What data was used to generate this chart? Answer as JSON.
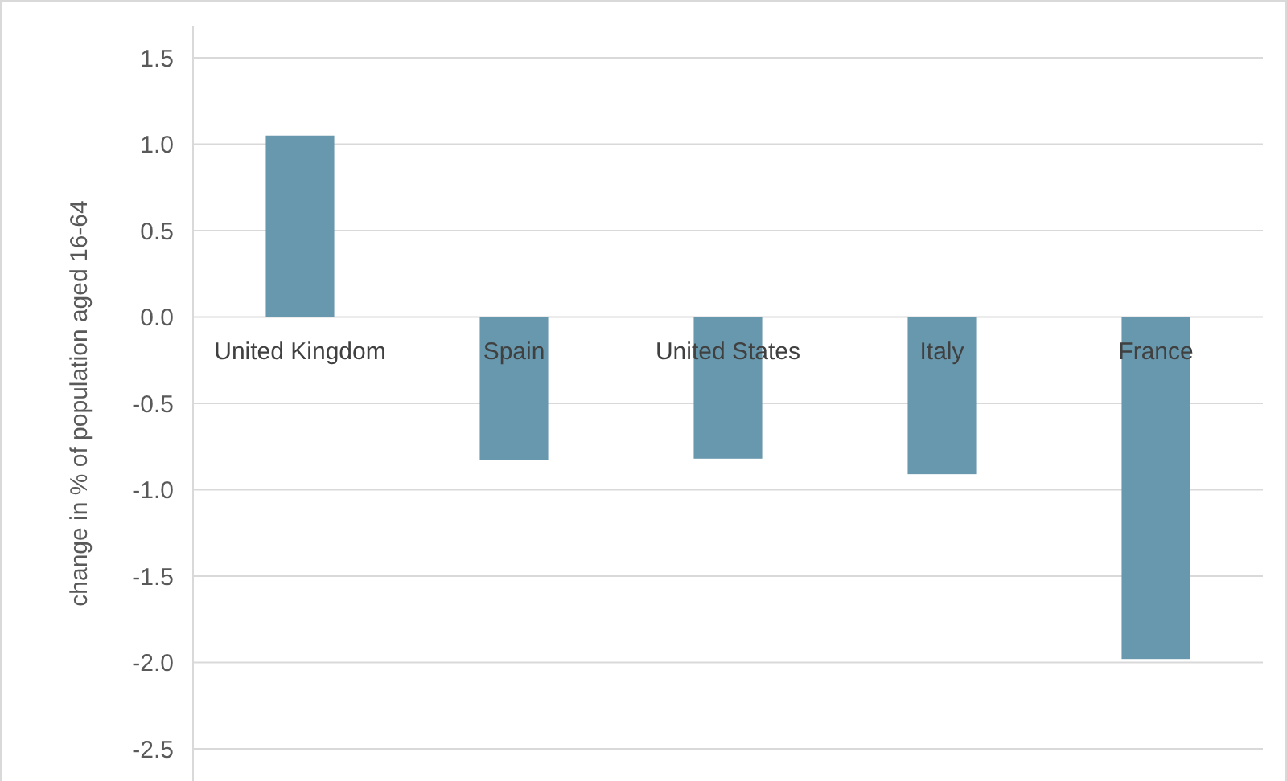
{
  "chart_data": {
    "type": "bar",
    "ylabel": "change in % of population aged 16-64",
    "categories": [
      "United Kingdom",
      "Spain",
      "United States",
      "Italy",
      "France"
    ],
    "values": [
      1.05,
      -0.83,
      -0.82,
      -0.91,
      -1.98
    ],
    "color": "#6898ad",
    "ylim": [
      -2.5,
      1.5
    ],
    "yticks": [
      {
        "value": -2.5,
        "label": "-2.5"
      },
      {
        "value": -2,
        "label": "-2.0"
      },
      {
        "value": -1.5,
        "label": "-1.5"
      },
      {
        "value": -1,
        "label": "-1.0"
      },
      {
        "value": -0.5,
        "label": "-0.5"
      },
      {
        "value": 0,
        "label": "0.0"
      },
      {
        "value": 0.5,
        "label": "0.5"
      },
      {
        "value": 1,
        "label": "1.0"
      },
      {
        "value": 1.5,
        "label": "1.5"
      }
    ],
    "grid": "y"
  }
}
